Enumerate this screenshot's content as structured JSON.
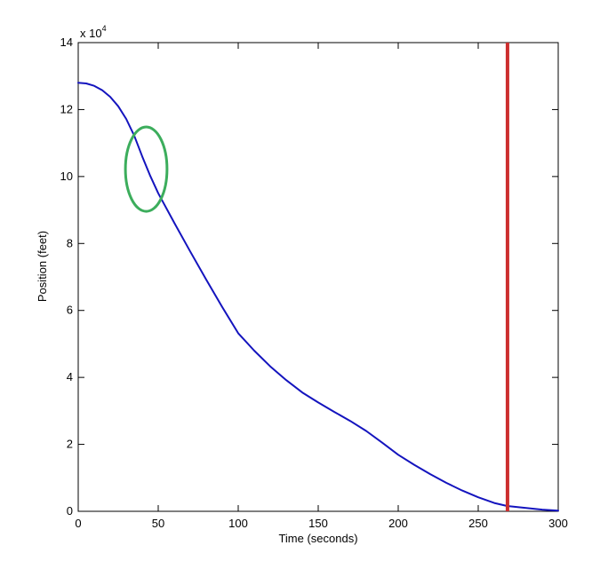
{
  "figure": {
    "background_color": "#ffffff",
    "axis_color": "#000000",
    "text_color": "#000000"
  },
  "chart_data": {
    "type": "line",
    "title": "",
    "xlabel": "Time (seconds)",
    "ylabel": "Position (feet)",
    "y_multiplier_base": "x 10",
    "y_multiplier_exponent": "4",
    "xlim": [
      0,
      300
    ],
    "ylim": [
      0,
      14
    ],
    "x_ticks": [
      0,
      50,
      100,
      150,
      200,
      250,
      300
    ],
    "y_ticks": [
      0,
      2,
      4,
      6,
      8,
      10,
      12,
      14
    ],
    "grid": false,
    "legend": null,
    "y_units_note": "y values are in units of 10^4 feet",
    "series": [
      {
        "name": "position-curve",
        "color": "#1414BE",
        "width": 2,
        "x": [
          0,
          5,
          10,
          15,
          20,
          25,
          30,
          35,
          40,
          45,
          50,
          60,
          70,
          80,
          90,
          100,
          110,
          120,
          130,
          140,
          150,
          160,
          170,
          180,
          190,
          200,
          210,
          220,
          230,
          240,
          250,
          260,
          268,
          272,
          280,
          290,
          300
        ],
        "y": [
          12.8,
          12.78,
          12.71,
          12.58,
          12.38,
          12.1,
          11.72,
          11.22,
          10.6,
          10.02,
          9.5,
          8.62,
          7.76,
          6.92,
          6.1,
          5.32,
          4.8,
          4.33,
          3.92,
          3.55,
          3.25,
          2.97,
          2.7,
          2.4,
          2.05,
          1.69,
          1.39,
          1.11,
          0.85,
          0.62,
          0.42,
          0.25,
          0.16,
          0.14,
          0.1,
          0.05,
          0.02
        ]
      }
    ],
    "annotations": [
      {
        "type": "vline",
        "name": "event-marker-line",
        "x": 268.3,
        "color": "#CC2F2F",
        "width": 4
      },
      {
        "type": "ellipse",
        "name": "highlight-ellipse",
        "cx": 42.5,
        "cy": 10.22,
        "rx": 13,
        "ry": 1.26,
        "color": "#3CAD5C",
        "width": 3
      }
    ]
  }
}
